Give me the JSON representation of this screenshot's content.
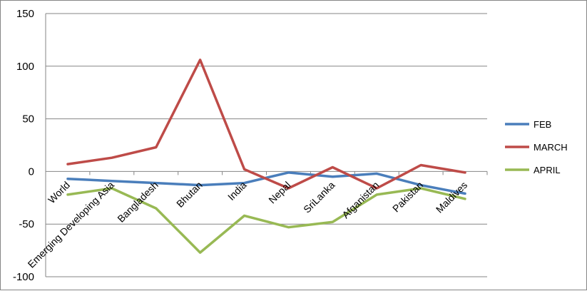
{
  "chart_data": {
    "type": "line",
    "categories": [
      "World",
      "Emerging Developing Asia",
      "Bangladesh",
      "Bhutan",
      "India",
      "Nepal",
      "SriLanka",
      "Afganistan",
      "Pakistan",
      "Maldives"
    ],
    "series": [
      {
        "name": "FEB",
        "color": "#4a7ebb",
        "values": [
          -7,
          -9,
          -11,
          -13,
          -11,
          -1,
          -5,
          -2,
          -13,
          -21
        ]
      },
      {
        "name": "MARCH",
        "color": "#be4b48",
        "values": [
          7,
          13,
          23,
          106,
          2,
          -16,
          4,
          -16,
          6,
          -1
        ]
      },
      {
        "name": "APRIL",
        "color": "#98b954",
        "values": [
          -22,
          -16,
          -35,
          -77,
          -42,
          -53,
          -48,
          -22,
          -16,
          -26
        ]
      }
    ],
    "yticks": [
      "150",
      "100",
      "50",
      "0",
      "-50",
      "-100"
    ],
    "ylim": [
      -100,
      150
    ],
    "grid": true,
    "legend": "right",
    "title": "",
    "xlabel": "",
    "ylabel": ""
  }
}
